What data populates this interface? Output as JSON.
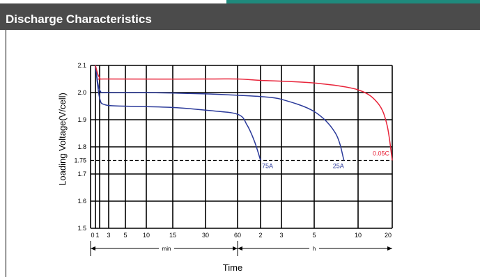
{
  "header": {
    "title": "Discharge Characteristics"
  },
  "colors": {
    "header_bg": "#4b4b4b",
    "accent": "#1f8a7d",
    "red": "#e8243a",
    "blue": "#2b3a9a"
  },
  "chart_data": {
    "type": "line",
    "title": "",
    "xlabel": "Time",
    "ylabel": "Loading Voltage(V/cell)",
    "x_scale": "log-time",
    "x_ticks": [
      "0",
      "1",
      "3",
      "5",
      "10",
      "15",
      "30",
      "60",
      "2",
      "3",
      "5",
      "10",
      "20"
    ],
    "x_units": [
      {
        "label": "min"
      },
      {
        "label": "h"
      }
    ],
    "y_ticks": [
      "1.5",
      "1.6",
      "1.7",
      "1.75",
      "1.8",
      "1.9",
      "2.0",
      "2.1"
    ],
    "ylim": [
      1.5,
      2.1
    ],
    "cutoff_voltage": 1.75,
    "cutoff_style": "dashed",
    "grid": true,
    "series": [
      {
        "name": "75A",
        "color": "#2b3a9a",
        "points": [
          [
            0,
            2.1
          ],
          [
            1,
            1.98
          ],
          [
            2,
            1.955
          ],
          [
            5,
            1.95
          ],
          [
            15,
            1.945
          ],
          [
            30,
            1.935
          ],
          [
            60,
            1.92
          ],
          [
            80,
            1.88
          ],
          [
            100,
            1.82
          ],
          [
            120,
            1.75
          ]
        ]
      },
      {
        "name": "25A",
        "color": "#2b3a9a",
        "points": [
          [
            0,
            2.1
          ],
          [
            1,
            2.01
          ],
          [
            3,
            2.0
          ],
          [
            10,
            2.0
          ],
          [
            30,
            1.995
          ],
          [
            60,
            1.99
          ],
          [
            120,
            1.985
          ],
          [
            180,
            1.975
          ],
          [
            300,
            1.93
          ],
          [
            420,
            1.85
          ],
          [
            480,
            1.75
          ]
        ]
      },
      {
        "name": "0.05C",
        "color": "#e8243a",
        "points": [
          [
            0,
            2.1
          ],
          [
            1,
            2.055
          ],
          [
            3,
            2.05
          ],
          [
            30,
            2.05
          ],
          [
            60,
            2.05
          ],
          [
            120,
            2.045
          ],
          [
            300,
            2.035
          ],
          [
            600,
            2.01
          ],
          [
            900,
            1.96
          ],
          [
            1080,
            1.88
          ],
          [
            1200,
            1.75
          ]
        ]
      }
    ]
  }
}
